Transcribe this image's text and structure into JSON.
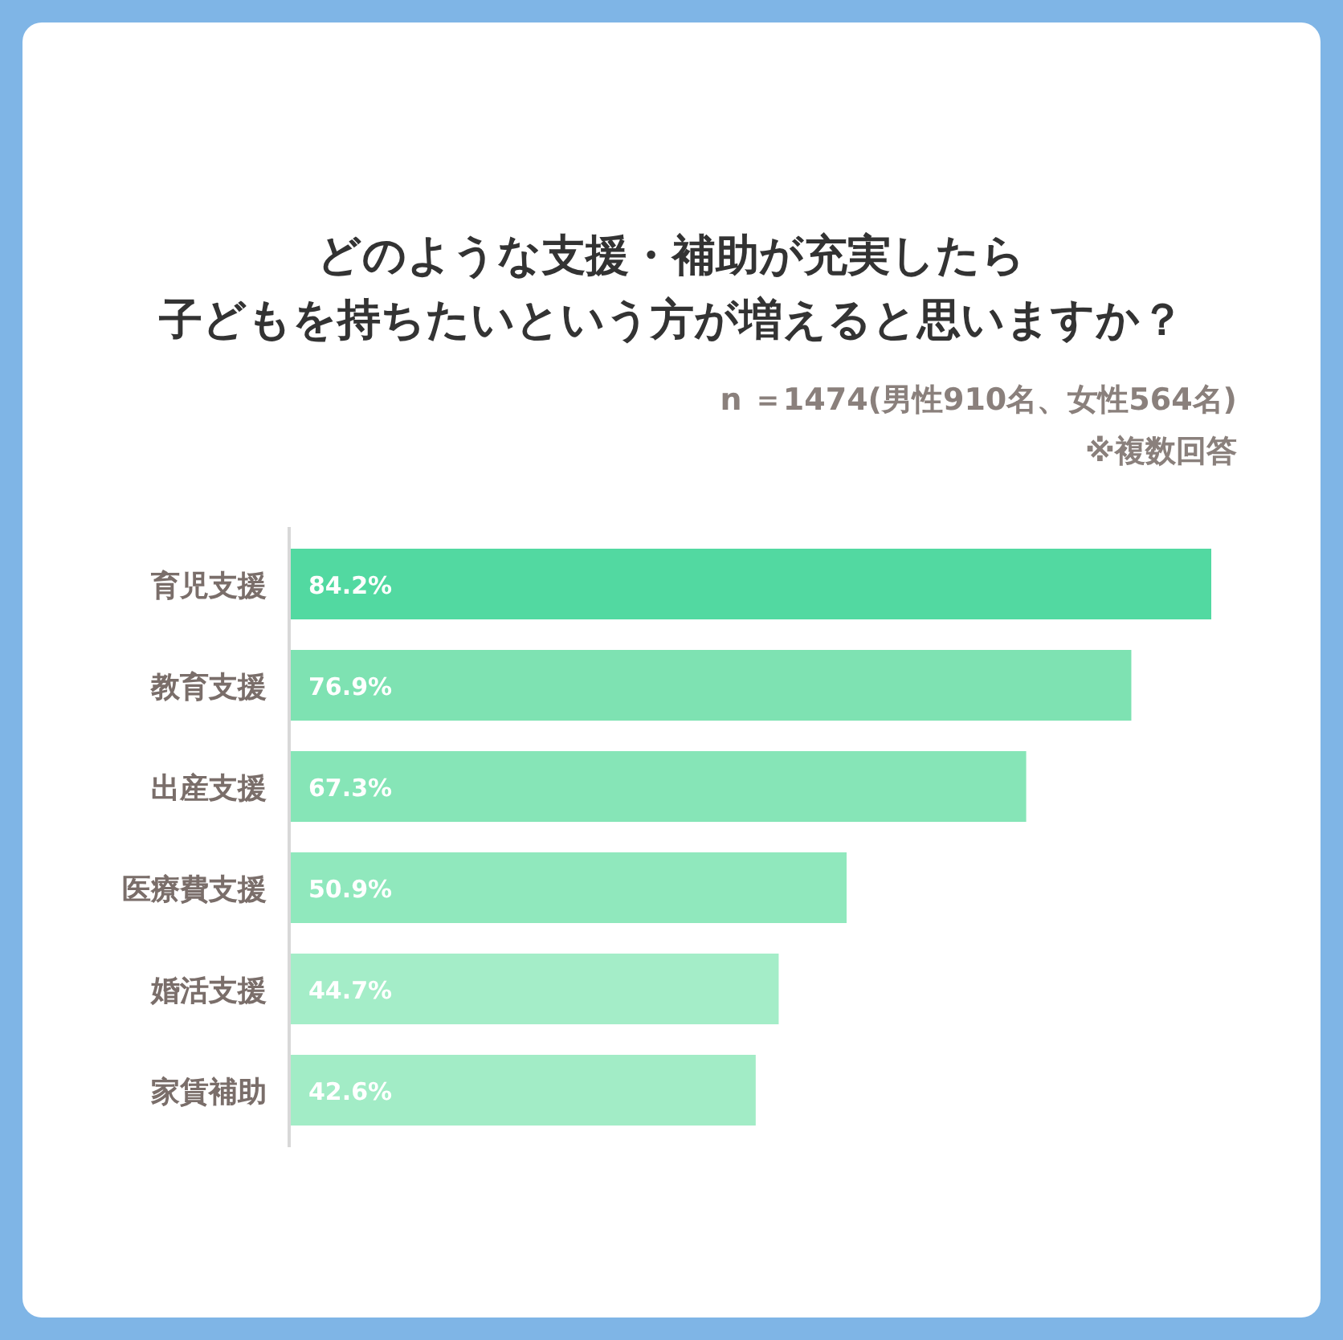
{
  "chart_data": {
    "type": "bar",
    "orientation": "horizontal",
    "title": "どのような支援・補助が充実したら子どもを持ちたいという方が増えると思いますか？",
    "subtitle": "n ＝1474(男性910名、女性564名)",
    "annotations": [
      "※複数回答"
    ],
    "categories": [
      "育児支援",
      "教育支援",
      "出産支援",
      "医療費支援",
      "婚活支援",
      "家賃補助"
    ],
    "values": [
      84.2,
      76.9,
      67.3,
      50.9,
      44.7,
      42.6
    ],
    "colors": [
      "#52d9a1",
      "#7ee2b2",
      "#86e5b7",
      "#90e8bd",
      "#a4edc8",
      "#a2ecc6"
    ],
    "value_labels": [
      "84.2%",
      "76.9%",
      "67.3%",
      "50.9%",
      "44.7%",
      "42.6%"
    ]
  }
}
